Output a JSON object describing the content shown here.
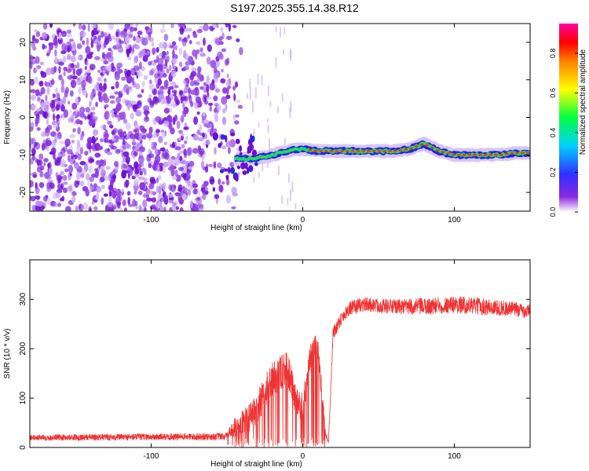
{
  "title": "S197.2025.355.14.38.R12",
  "chart_data": [
    {
      "type": "heatmap",
      "title": "",
      "xlabel": "Height of straight line (km)",
      "ylabel": "Frequency (Hz)",
      "xlim": [
        -180,
        150
      ],
      "ylim": [
        -25,
        25
      ],
      "xticks": [
        -100,
        0,
        100
      ],
      "yticks": [
        -20,
        -10,
        0,
        10,
        20
      ],
      "colorbar": {
        "label": "Normalized spectral amplitude",
        "range": [
          0.0,
          0.95
        ],
        "ticks": [
          "0.0",
          "0.2",
          "0.4",
          "0.6",
          "0.8"
        ],
        "colormap": "rainbow (white-purple-blue-cyan-green-yellow-orange-red-magenta)"
      },
      "noise_region_x": [
        -180,
        -40
      ],
      "signal_track": {
        "x": [
          -45,
          -35,
          -25,
          -15,
          -5,
          0,
          10,
          20,
          30,
          40,
          50,
          60,
          70,
          80,
          90,
          100,
          110,
          120,
          130,
          140,
          150
        ],
        "y": [
          -11,
          -11,
          -10.5,
          -9.5,
          -8.5,
          -8.5,
          -9,
          -9,
          -9,
          -9,
          -9,
          -9,
          -8.5,
          -7,
          -9,
          -10,
          -10,
          -10,
          -10,
          -9.5,
          -9.5
        ]
      },
      "colors": {
        "noise": "#7f1fd8",
        "track_edge": "#2222ee",
        "track_mid": "#22dd55",
        "track_core": "#ff3300"
      }
    },
    {
      "type": "line",
      "title": "",
      "xlabel": "Height of straight line (km)",
      "ylabel": "SNR (10 * v/v)",
      "xlim": [
        -180,
        150
      ],
      "ylim": [
        0,
        380
      ],
      "xticks": [
        -100,
        0,
        100
      ],
      "yticks": [
        0,
        100,
        200,
        300
      ],
      "series": [
        {
          "color": "#ee3333",
          "envelope": {
            "x": [
              -180,
              -50,
              -45,
              -35,
              -30,
              -25,
              -20,
              -15,
              -10,
              -5,
              0,
              5,
              10,
              15,
              17,
              20,
              25,
              30,
              40,
              60,
              80,
              100,
              120,
              140,
              150
            ],
            "mean": [
              20,
              22,
              40,
              60,
              80,
              110,
              140,
              150,
              160,
              100,
              80,
              190,
              200,
              30,
              10,
              230,
              260,
              280,
              290,
              285,
              285,
              290,
              285,
              280,
              275
            ],
            "amplitude": [
              12,
              15,
              40,
              60,
              70,
              70,
              70,
              70,
              70,
              60,
              60,
              60,
              60,
              20,
              10,
              30,
              30,
              30,
              30,
              30,
              35,
              35,
              35,
              30,
              30
            ]
          }
        }
      ]
    }
  ]
}
